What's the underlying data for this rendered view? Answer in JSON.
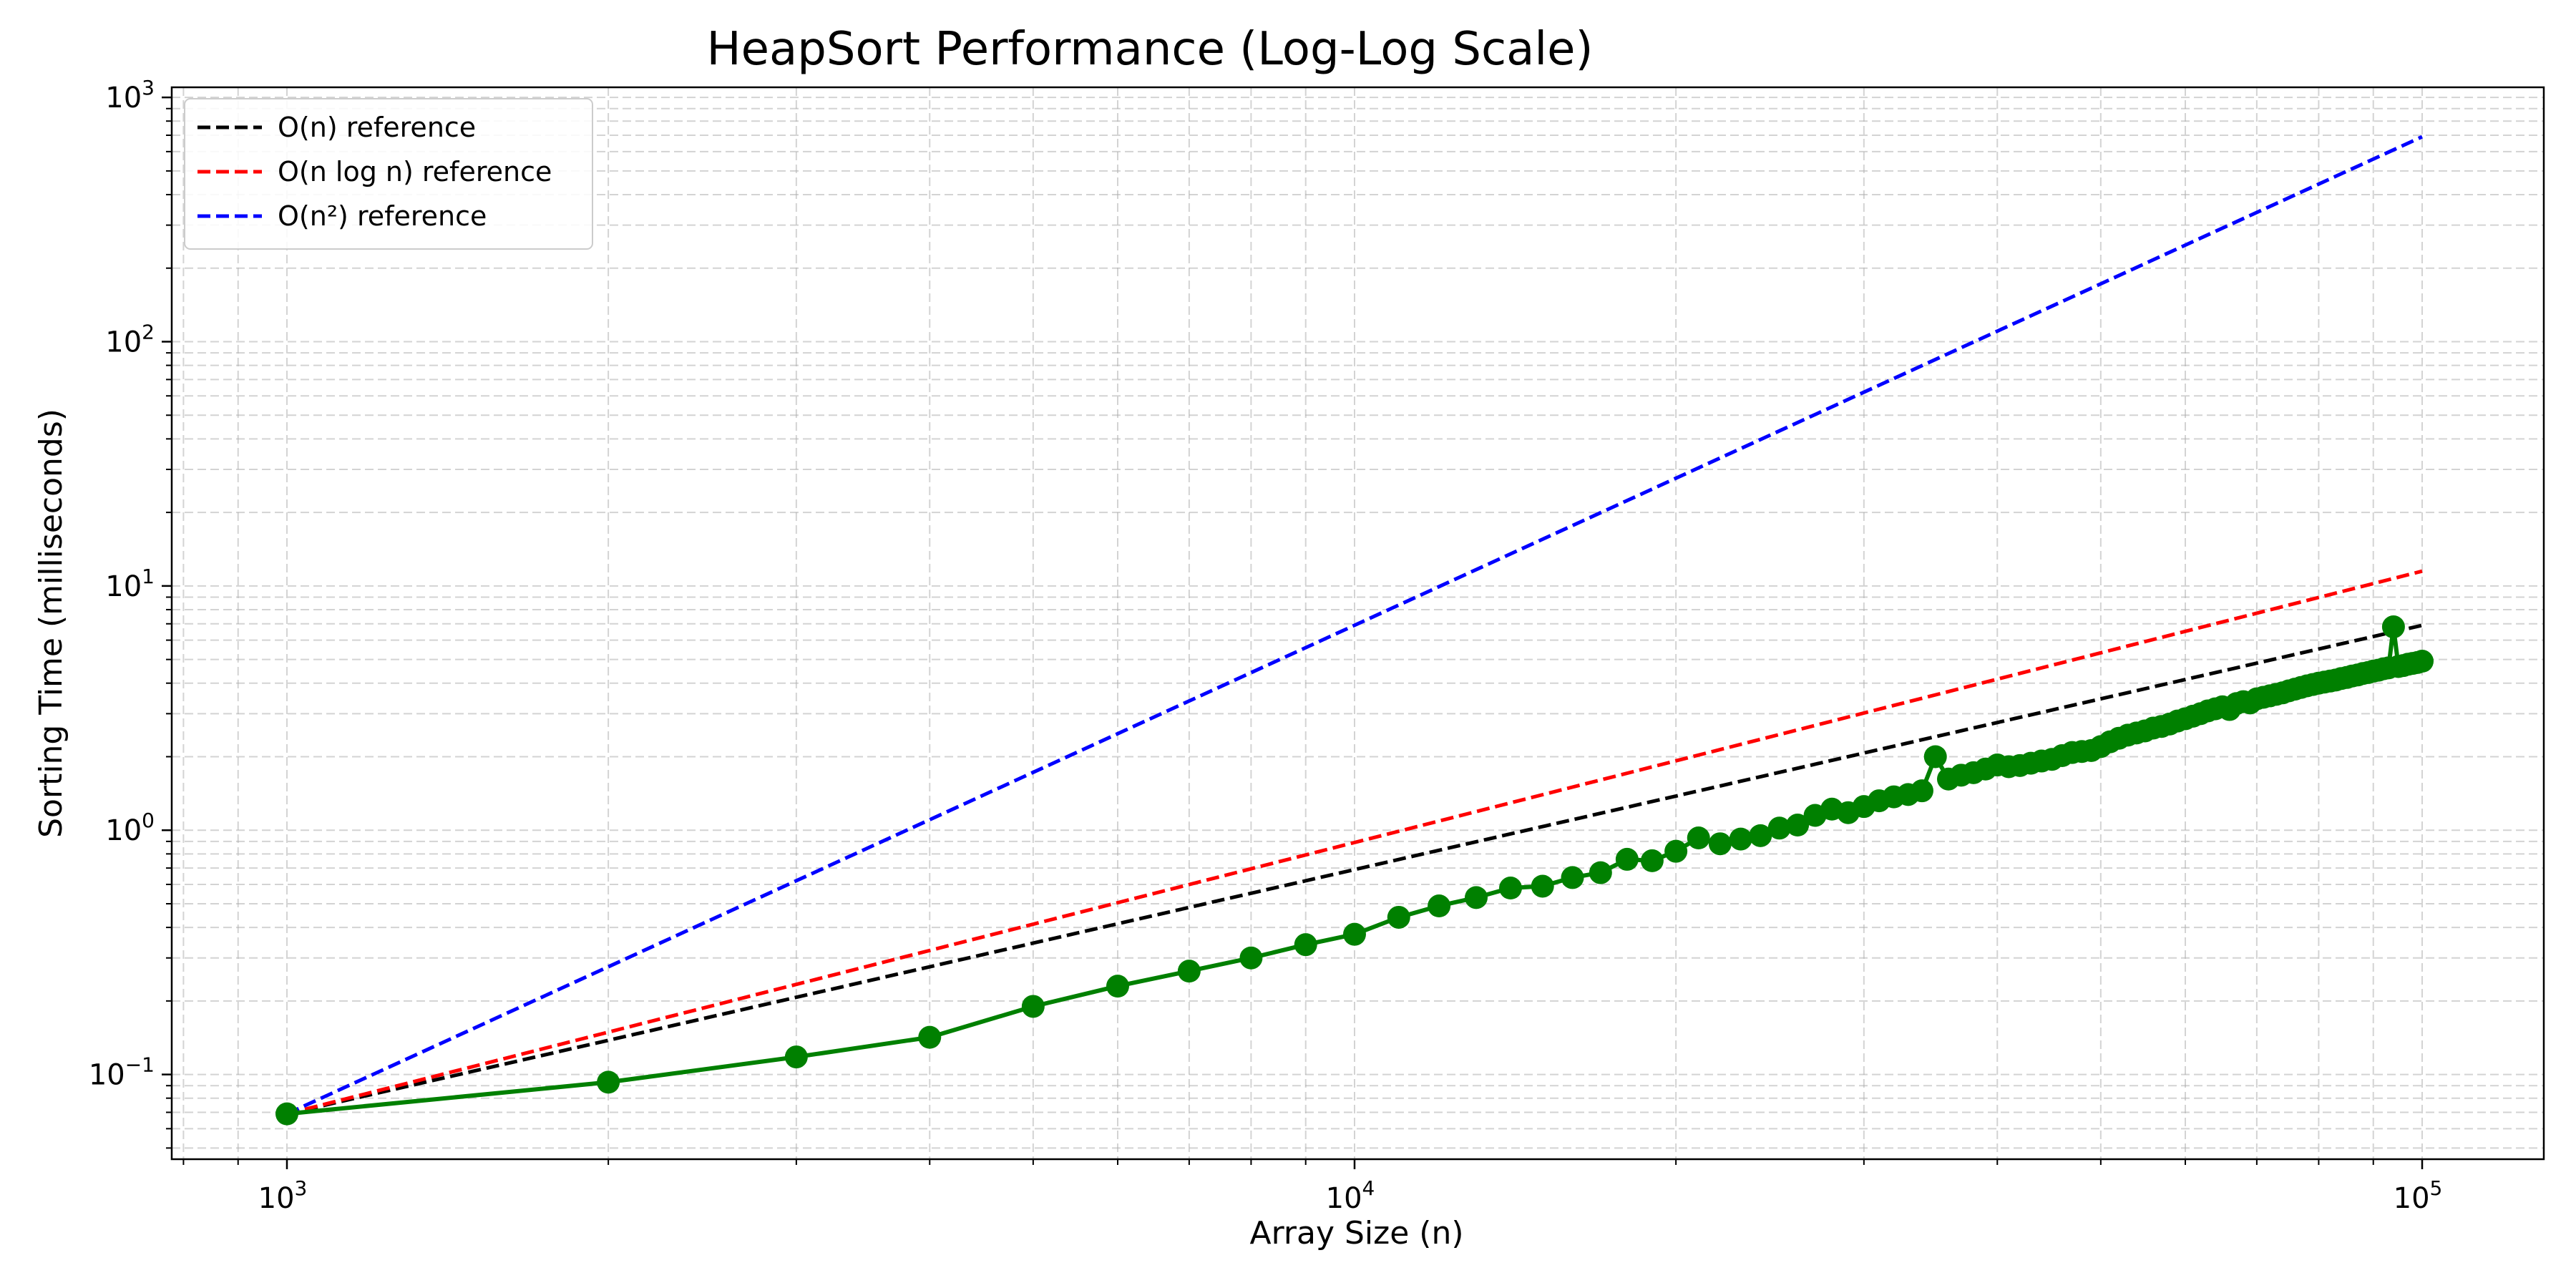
{
  "chart_data": {
    "type": "line",
    "title": "HeapSort Performance (Log-Log Scale)",
    "xlabel": "Array Size (n)",
    "ylabel": "Sorting Time (milliseconds)",
    "xscale": "log",
    "yscale": "log",
    "xlim": [
      780,
      130000
    ],
    "ylim": [
      0.045,
      1100
    ],
    "grid": "on (major and minor, dashed)",
    "legend_position": "top-left",
    "x_ticks": [
      {
        "value": 1000,
        "base": "10",
        "exp": "3"
      },
      {
        "value": 10000,
        "base": "10",
        "exp": "4"
      },
      {
        "value": 100000,
        "base": "10",
        "exp": "5"
      }
    ],
    "y_ticks": [
      {
        "value": 0.1,
        "base": "10",
        "exp": "−1"
      },
      {
        "value": 1,
        "base": "10",
        "exp": "0"
      },
      {
        "value": 10,
        "base": "10",
        "exp": "1"
      },
      {
        "value": 100,
        "base": "10",
        "exp": "2"
      },
      {
        "value": 1000,
        "base": "10",
        "exp": "3"
      }
    ],
    "series": [
      {
        "name": "O(n) reference",
        "color": "#000000",
        "style": "dashed",
        "x": [
          1000,
          100000
        ],
        "values": [
          0.069,
          6.9
        ]
      },
      {
        "name": "O(n log n) reference",
        "color": "#ff0000",
        "style": "dashed",
        "x": [
          1000,
          100000
        ],
        "values": [
          0.069,
          11.5
        ]
      },
      {
        "name": "O(n²) reference",
        "color": "#0000ff",
        "style": "dashed",
        "x": [
          1000,
          100000
        ],
        "values": [
          0.069,
          690
        ]
      },
      {
        "name": "",
        "color": "#008000",
        "style": "solid-markers",
        "x": [
          1000,
          2000,
          3000,
          4000,
          5000,
          6000,
          7000,
          8000,
          9000,
          10000,
          11000,
          12000,
          13000,
          14000,
          15000,
          16000,
          17000,
          18000,
          19000,
          20000,
          21000,
          22000,
          23000,
          24000,
          25000,
          26000,
          27000,
          28000,
          29000,
          30000,
          31000,
          32000,
          33000,
          34000,
          35000,
          36000,
          37000,
          38000,
          39000,
          40000,
          41000,
          42000,
          43000,
          44000,
          45000,
          46000,
          47000,
          48000,
          49000,
          50000,
          51000,
          52000,
          53000,
          54000,
          55000,
          56000,
          57000,
          58000,
          59000,
          60000,
          61000,
          62000,
          63000,
          64000,
          65000,
          66000,
          67000,
          68000,
          69000,
          70000,
          71000,
          72000,
          73000,
          74000,
          75000,
          76000,
          77000,
          78000,
          79000,
          80000,
          81000,
          82000,
          83000,
          84000,
          85000,
          86000,
          87000,
          88000,
          89000,
          90000,
          91000,
          92000,
          93000,
          94000,
          95000,
          96000,
          97000,
          98000,
          99000,
          100000
        ],
        "values": [
          0.069,
          0.093,
          0.118,
          0.142,
          0.19,
          0.23,
          0.265,
          0.3,
          0.34,
          0.375,
          0.44,
          0.49,
          0.53,
          0.58,
          0.59,
          0.64,
          0.67,
          0.76,
          0.75,
          0.82,
          0.93,
          0.88,
          0.92,
          0.95,
          1.02,
          1.05,
          1.15,
          1.22,
          1.18,
          1.25,
          1.32,
          1.37,
          1.4,
          1.45,
          2.0,
          1.62,
          1.68,
          1.72,
          1.78,
          1.85,
          1.82,
          1.84,
          1.88,
          1.92,
          1.95,
          2.02,
          2.08,
          2.1,
          2.12,
          2.2,
          2.3,
          2.38,
          2.45,
          2.5,
          2.55,
          2.62,
          2.66,
          2.72,
          2.8,
          2.86,
          2.93,
          3.0,
          3.08,
          3.14,
          3.2,
          3.12,
          3.3,
          3.36,
          3.32,
          3.45,
          3.5,
          3.55,
          3.6,
          3.65,
          3.72,
          3.78,
          3.84,
          3.9,
          3.95,
          4.0,
          4.04,
          4.08,
          4.12,
          4.18,
          4.22,
          4.28,
          4.32,
          4.38,
          4.42,
          4.48,
          4.52,
          4.58,
          4.62,
          6.8,
          4.68,
          4.72,
          4.78,
          4.82,
          4.86,
          4.92
        ]
      }
    ]
  }
}
